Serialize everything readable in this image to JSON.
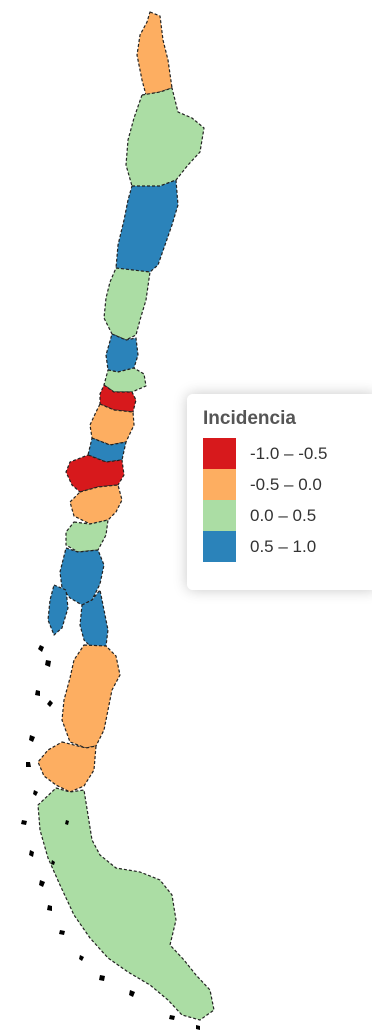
{
  "legend": {
    "title": "Incidencia",
    "items": [
      {
        "label": "-1.0 – -0.5",
        "color": "#d7191c"
      },
      {
        "label": "-0.5 – 0.0",
        "color": "#fdae61"
      },
      {
        "label": "0.0 – 0.5",
        "color": "#abdda4"
      },
      {
        "label": "0.5 – 1.0",
        "color": "#2b83ba"
      }
    ]
  },
  "regions": [
    {
      "class": "orange"
    },
    {
      "class": "green"
    },
    {
      "class": "blue"
    },
    {
      "class": "green"
    },
    {
      "class": "blue"
    },
    {
      "class": "green"
    },
    {
      "class": "red"
    },
    {
      "class": "orange"
    },
    {
      "class": "blue"
    },
    {
      "class": "red"
    },
    {
      "class": "orange"
    },
    {
      "class": "green"
    },
    {
      "class": "blue"
    },
    {
      "class": "blue"
    },
    {
      "class": "orange"
    },
    {
      "class": "orange"
    },
    {
      "class": "green"
    }
  ],
  "colors": {
    "red": "#d7191c",
    "orange": "#fdae61",
    "green": "#abdda4",
    "blue": "#2b83ba"
  }
}
